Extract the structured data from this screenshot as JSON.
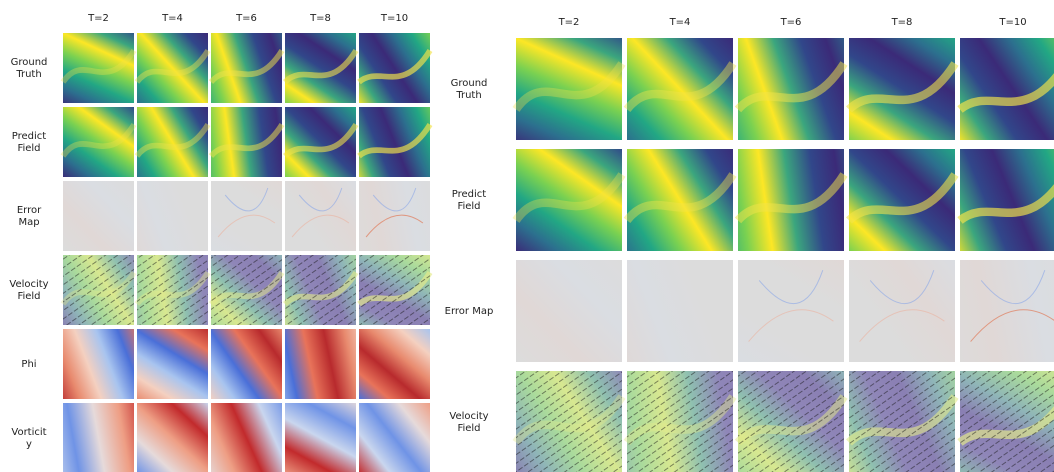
{
  "left_panel": {
    "columns": [
      "T=2",
      "T=4",
      "T=6",
      "T=8",
      "T=10"
    ],
    "rows": [
      [
        "Ground",
        "Truth"
      ],
      [
        "Predict",
        "Field"
      ],
      [
        "Error",
        "Map"
      ],
      [
        "Velocity",
        "Field"
      ],
      [
        "Phi"
      ],
      [
        "Vorticit",
        "y"
      ]
    ]
  },
  "right_panel": {
    "columns": [
      "T=2",
      "T=4",
      "T=6",
      "T=8",
      "T=10"
    ],
    "rows": [
      [
        "Ground",
        "Truth"
      ],
      [
        "Predict",
        "Field"
      ],
      [
        "Error Map"
      ],
      [
        "Velocity",
        "Field"
      ]
    ]
  }
}
